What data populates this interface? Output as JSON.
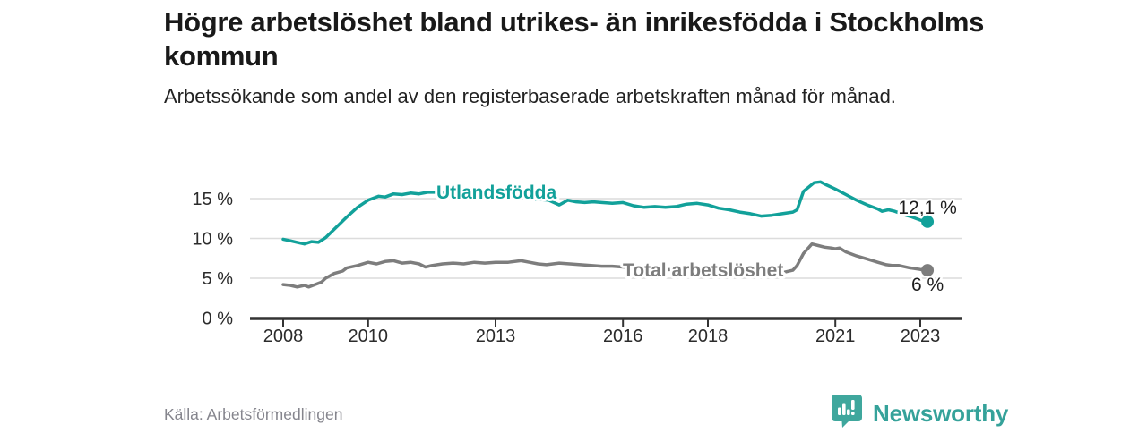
{
  "header": {
    "title": "Högre arbetslöshet bland utrikes- än inrikesfödda i Stockholms kommun",
    "subtitle": "Arbetssökande som andel av den registerbaserade arbetskraften månad för månad."
  },
  "footer": {
    "source": "Källa: Arbetsförmedlingen",
    "brand_name": "Newsworthy",
    "brand_logo_icon": "speech-bubble-bar-chart-icon"
  },
  "colors": {
    "series_foreign_born": "#12a19a",
    "series_total": "#7d7d7d",
    "axis": "#333333",
    "grid": "#dcdcdc",
    "text": "#2b2b2b",
    "brand_teal": "#35a29a"
  },
  "chart_data": {
    "type": "line",
    "title": "Högre arbetslöshet bland utrikes- än inrikesfödda i Stockholms kommun",
    "subtitle": "Arbetssökande som andel av den registerbaserade arbetskraften månad för månad.",
    "xlabel": "",
    "ylabel": "",
    "x_axis": {
      "ticks": [
        2008,
        2010,
        2013,
        2016,
        2018,
        2021,
        2023
      ],
      "range": [
        2008,
        2023.7
      ],
      "unit": "year"
    },
    "y_axis": {
      "tick_values": [
        0,
        5,
        10,
        15
      ],
      "tick_labels": [
        "0 %",
        "5 %",
        "10 %",
        "15 %"
      ],
      "range": [
        0,
        17.5
      ],
      "gridlines": [
        5,
        10,
        15
      ],
      "unit": "percent"
    },
    "legend_position": "inline-labels",
    "grid": true,
    "series": [
      {
        "name": "Utlandsfödda",
        "color": "#12a19a",
        "end_value": 12.1,
        "end_label": "12,1 %",
        "points": [
          [
            2008.0,
            9.9
          ],
          [
            2008.17,
            9.7
          ],
          [
            2008.33,
            9.5
          ],
          [
            2008.5,
            9.3
          ],
          [
            2008.67,
            9.6
          ],
          [
            2008.83,
            9.5
          ],
          [
            2009.0,
            10.1
          ],
          [
            2009.25,
            11.4
          ],
          [
            2009.5,
            12.7
          ],
          [
            2009.75,
            13.9
          ],
          [
            2010.0,
            14.8
          ],
          [
            2010.25,
            15.3
          ],
          [
            2010.4,
            15.2
          ],
          [
            2010.6,
            15.6
          ],
          [
            2010.8,
            15.5
          ],
          [
            2011.0,
            15.7
          ],
          [
            2011.2,
            15.6
          ],
          [
            2011.4,
            15.8
          ],
          [
            2011.6,
            15.8
          ],
          [
            2011.8,
            15.7
          ],
          [
            2012.0,
            15.8
          ],
          [
            2012.25,
            15.9
          ],
          [
            2012.5,
            15.8
          ],
          [
            2012.75,
            15.6
          ],
          [
            2013.0,
            15.5
          ],
          [
            2013.25,
            15.3
          ],
          [
            2013.5,
            15.1
          ],
          [
            2013.75,
            15.0
          ],
          [
            2014.0,
            14.9
          ],
          [
            2014.25,
            14.8
          ],
          [
            2014.5,
            14.2
          ],
          [
            2014.7,
            14.8
          ],
          [
            2014.9,
            14.6
          ],
          [
            2015.1,
            14.5
          ],
          [
            2015.3,
            14.6
          ],
          [
            2015.5,
            14.5
          ],
          [
            2015.75,
            14.4
          ],
          [
            2016.0,
            14.5
          ],
          [
            2016.25,
            14.1
          ],
          [
            2016.5,
            13.9
          ],
          [
            2016.75,
            14.0
          ],
          [
            2017.0,
            13.9
          ],
          [
            2017.25,
            14.0
          ],
          [
            2017.5,
            14.3
          ],
          [
            2017.75,
            14.4
          ],
          [
            2018.0,
            14.2
          ],
          [
            2018.25,
            13.8
          ],
          [
            2018.5,
            13.6
          ],
          [
            2018.75,
            13.3
          ],
          [
            2019.0,
            13.1
          ],
          [
            2019.25,
            12.8
          ],
          [
            2019.5,
            12.9
          ],
          [
            2019.75,
            13.1
          ],
          [
            2020.0,
            13.3
          ],
          [
            2020.1,
            13.6
          ],
          [
            2020.25,
            15.9
          ],
          [
            2020.5,
            17.0
          ],
          [
            2020.65,
            17.1
          ],
          [
            2020.8,
            16.7
          ],
          [
            2021.0,
            16.2
          ],
          [
            2021.25,
            15.5
          ],
          [
            2021.5,
            14.8
          ],
          [
            2021.75,
            14.2
          ],
          [
            2022.0,
            13.7
          ],
          [
            2022.1,
            13.4
          ],
          [
            2022.25,
            13.6
          ],
          [
            2022.4,
            13.4
          ],
          [
            2022.6,
            13.0
          ],
          [
            2022.8,
            12.7
          ],
          [
            2023.0,
            12.3
          ],
          [
            2023.17,
            12.1
          ]
        ]
      },
      {
        "name": "Total arbetslöshet",
        "color": "#7d7d7d",
        "end_value": 6.0,
        "end_label": "6 %",
        "points": [
          [
            2008.0,
            4.2
          ],
          [
            2008.17,
            4.1
          ],
          [
            2008.33,
            3.9
          ],
          [
            2008.5,
            4.1
          ],
          [
            2008.6,
            3.9
          ],
          [
            2008.75,
            4.2
          ],
          [
            2008.9,
            4.5
          ],
          [
            2009.0,
            5.0
          ],
          [
            2009.2,
            5.6
          ],
          [
            2009.4,
            5.9
          ],
          [
            2009.5,
            6.3
          ],
          [
            2009.75,
            6.6
          ],
          [
            2010.0,
            7.0
          ],
          [
            2010.2,
            6.8
          ],
          [
            2010.4,
            7.1
          ],
          [
            2010.6,
            7.2
          ],
          [
            2010.8,
            6.9
          ],
          [
            2011.0,
            7.0
          ],
          [
            2011.2,
            6.8
          ],
          [
            2011.35,
            6.4
          ],
          [
            2011.5,
            6.6
          ],
          [
            2011.75,
            6.8
          ],
          [
            2012.0,
            6.9
          ],
          [
            2012.25,
            6.8
          ],
          [
            2012.5,
            7.0
          ],
          [
            2012.75,
            6.9
          ],
          [
            2013.0,
            7.0
          ],
          [
            2013.3,
            7.0
          ],
          [
            2013.6,
            7.2
          ],
          [
            2013.8,
            7.0
          ],
          [
            2014.0,
            6.8
          ],
          [
            2014.2,
            6.7
          ],
          [
            2014.5,
            6.9
          ],
          [
            2014.75,
            6.8
          ],
          [
            2015.0,
            6.7
          ],
          [
            2015.25,
            6.6
          ],
          [
            2015.5,
            6.5
          ],
          [
            2015.75,
            6.5
          ],
          [
            2016.0,
            6.4
          ],
          [
            2016.5,
            6.2
          ],
          [
            2017.0,
            6.1
          ],
          [
            2017.5,
            6.0
          ],
          [
            2018.0,
            5.9
          ],
          [
            2018.5,
            5.7
          ],
          [
            2019.0,
            5.6
          ],
          [
            2019.5,
            5.6
          ],
          [
            2019.75,
            5.7
          ],
          [
            2020.0,
            6.0
          ],
          [
            2020.1,
            6.6
          ],
          [
            2020.25,
            8.1
          ],
          [
            2020.45,
            9.3
          ],
          [
            2020.6,
            9.1
          ],
          [
            2020.75,
            8.9
          ],
          [
            2020.9,
            8.8
          ],
          [
            2021.0,
            8.7
          ],
          [
            2021.1,
            8.8
          ],
          [
            2021.25,
            8.3
          ],
          [
            2021.5,
            7.8
          ],
          [
            2021.75,
            7.4
          ],
          [
            2022.0,
            7.0
          ],
          [
            2022.2,
            6.7
          ],
          [
            2022.35,
            6.6
          ],
          [
            2022.5,
            6.6
          ],
          [
            2022.75,
            6.3
          ],
          [
            2023.0,
            6.1
          ],
          [
            2023.17,
            6.0
          ]
        ]
      }
    ]
  }
}
